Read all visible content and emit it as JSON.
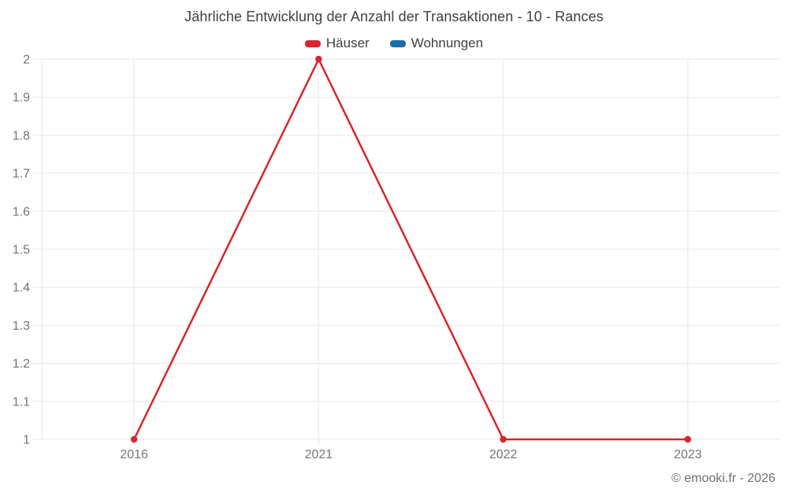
{
  "title": "Jährliche Entwicklung der Anzahl der Transaktionen - 10 - Rances",
  "legend": [
    {
      "label": "Häuser",
      "color": "#d8262c"
    },
    {
      "label": "Wohnungen",
      "color": "#1c6ea4"
    }
  ],
  "footer": {
    "credit": "© emooki.fr - 2026"
  },
  "chart_data": {
    "type": "line",
    "title": "Jährliche Entwicklung der Anzahl der Transaktionen - 10 - Rances",
    "categories": [
      "2016",
      "2021",
      "2022",
      "2023"
    ],
    "series": [
      {
        "name": "Häuser",
        "color": "#d8262c",
        "values": [
          1,
          2,
          1,
          1
        ]
      },
      {
        "name": "Wohnungen",
        "color": "#1c6ea4",
        "values": [
          null,
          null,
          null,
          null
        ]
      }
    ],
    "xlabel": "",
    "ylabel": "",
    "ylim": [
      1,
      2
    ],
    "yticks": [
      "1",
      "1.1",
      "1.2",
      "1.3",
      "1.4",
      "1.5",
      "1.6",
      "1.7",
      "1.8",
      "1.9",
      "2"
    ],
    "grid": true,
    "legend_position": "top",
    "grid_color": "#e8e8e8",
    "tick_label_color": "#757575"
  }
}
